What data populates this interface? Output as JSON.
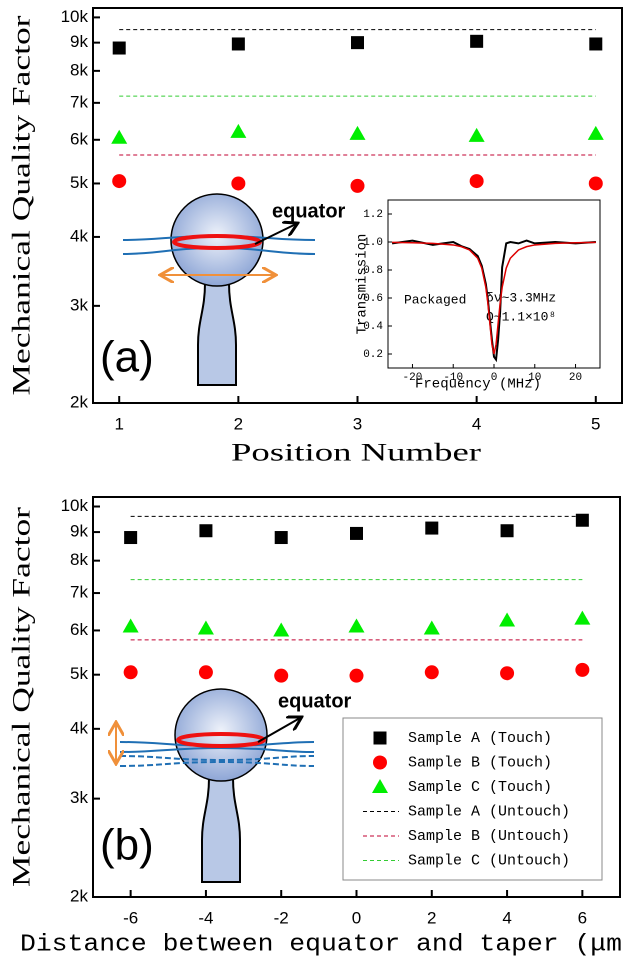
{
  "chart_data": [
    {
      "type": "scatter",
      "panel_label": "(a)",
      "ylabel": "Mechanical Quality Factor",
      "xlabel": "Position Number",
      "y_scale": "log",
      "ylim": [
        2000,
        10400
      ],
      "yticks": [
        {
          "value": 2000,
          "label": "2k"
        },
        {
          "value": 3000,
          "label": "3k"
        },
        {
          "value": 4000,
          "label": "4k"
        },
        {
          "value": 5000,
          "label": "5k"
        },
        {
          "value": 6000,
          "label": "6k"
        },
        {
          "value": 7000,
          "label": "7k"
        },
        {
          "value": 8000,
          "label": "8k"
        },
        {
          "value": 9000,
          "label": "9k"
        },
        {
          "value": 10000,
          "label": "10k"
        }
      ],
      "xlim": [
        0.78,
        5.22
      ],
      "xticks": [
        1,
        2,
        3,
        4,
        5
      ],
      "x": [
        1,
        2,
        3,
        4,
        5
      ],
      "series": [
        {
          "color": "#000000",
          "marker": "square",
          "values": [
            8800,
            8950,
            9000,
            9050,
            8950
          ]
        },
        {
          "color": "#ff0000",
          "marker": "circle",
          "values": [
            5050,
            5000,
            4950,
            5050,
            5000
          ]
        },
        {
          "color": "#00ee00",
          "marker": "triangle",
          "values": [
            6050,
            6200,
            6150,
            6100,
            6150
          ]
        },
        {
          "color": "#000000",
          "style": "dashed",
          "values": [
            9500
          ]
        },
        {
          "color": "#c00030",
          "style": "dashed",
          "values": [
            5630
          ]
        },
        {
          "color": "#33cc33",
          "style": "dashed",
          "values": [
            7200
          ]
        }
      ],
      "annotations": [
        "equator"
      ]
    },
    {
      "type": "line",
      "ylabel": "Transmission",
      "xlabel": "Frequency (MHz)",
      "xlim": [
        -26,
        26
      ],
      "xticks": [
        -20,
        -10,
        0,
        10,
        20
      ],
      "ylim": [
        0.1,
        1.3
      ],
      "yticks": [
        0.2,
        0.4,
        0.6,
        0.8,
        {
          "value": 1,
          "label": "1.0"
        },
        1.2
      ],
      "x": [
        -25,
        -20,
        -15,
        -10,
        -8,
        -6,
        -4,
        -3,
        -2,
        -1.5,
        -1,
        -0.5,
        0,
        0.5,
        1,
        1.5,
        2,
        3,
        4,
        6,
        8,
        10,
        15,
        20,
        25
      ],
      "series": [
        {
          "color": "#000000",
          "values": [
            0.99,
            1.01,
            0.98,
            1.0,
            0.97,
            0.95,
            0.9,
            0.83,
            0.7,
            0.59,
            0.44,
            0.3,
            0.18,
            0.16,
            0.3,
            0.5,
            0.82,
            0.99,
            1.0,
            0.99,
            1.01,
            0.99,
            1.0,
            0.99,
            1.0
          ]
        },
        {
          "color": "#dd0000",
          "values": [
            0.997,
            0.995,
            0.99,
            0.979,
            0.967,
            0.943,
            0.884,
            0.814,
            0.676,
            0.562,
            0.415,
            0.267,
            0.2,
            0.267,
            0.415,
            0.562,
            0.676,
            0.814,
            0.884,
            0.943,
            0.967,
            0.979,
            0.99,
            0.995,
            0.997
          ]
        }
      ],
      "annotations": [
        "Packaged",
        "δν~3.3MHz",
        "Q~1.1×10⁸"
      ]
    },
    {
      "type": "scatter",
      "panel_label": "(b)",
      "ylabel": "Mechanical Quality Factor",
      "xlabel": "Distance between equator and taper (μm",
      "y_scale": "log",
      "ylim": [
        2000,
        10400
      ],
      "yticks": [
        {
          "value": 2000,
          "label": "2k"
        },
        {
          "value": 3000,
          "label": "3k"
        },
        {
          "value": 4000,
          "label": "4k"
        },
        {
          "value": 5000,
          "label": "5k"
        },
        {
          "value": 6000,
          "label": "6k"
        },
        {
          "value": 7000,
          "label": "7k"
        },
        {
          "value": 8000,
          "label": "8k"
        },
        {
          "value": 9000,
          "label": "9k"
        },
        {
          "value": 10000,
          "label": "10k"
        }
      ],
      "xlim": [
        -7,
        7
      ],
      "xticks": [
        -6,
        -4,
        -2,
        0,
        2,
        4,
        6
      ],
      "x": [
        -6,
        -4,
        -2,
        0,
        2,
        4,
        6
      ],
      "legend": "lower right",
      "series": [
        {
          "name": "Sample A (Touch)",
          "color": "#000000",
          "marker": "square",
          "values": [
            8800,
            9050,
            8800,
            8950,
            9150,
            9050,
            9450
          ]
        },
        {
          "name": "Sample B (Touch)",
          "color": "#ff0000",
          "marker": "circle",
          "values": [
            5050,
            5050,
            4980,
            4980,
            5050,
            5030,
            5100
          ]
        },
        {
          "name": "Sample C (Touch)",
          "color": "#00ee00",
          "marker": "triangle",
          "values": [
            6100,
            6050,
            6000,
            6100,
            6050,
            6250,
            6300
          ]
        },
        {
          "name": "Sample A (Untouch)",
          "color": "#000000",
          "style": "dashed",
          "values": [
            9600
          ]
        },
        {
          "name": "Sample B (Untouch)",
          "color": "#c00030",
          "style": "dashed",
          "values": [
            5770
          ]
        },
        {
          "name": "Sample C (Untouch)",
          "color": "#33cc33",
          "style": "dashed",
          "values": [
            7400
          ]
        }
      ],
      "annotations": [
        "equator"
      ]
    }
  ]
}
